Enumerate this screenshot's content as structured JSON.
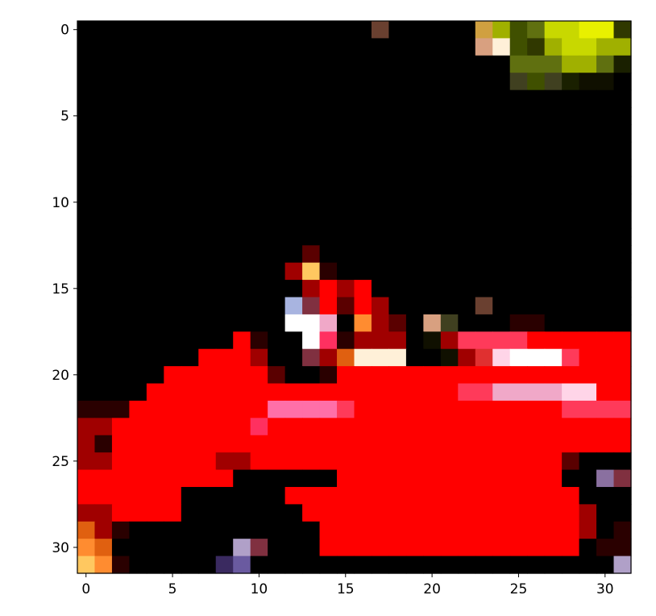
{
  "chart_data": {
    "type": "heatmap",
    "title": "",
    "xlabel": "",
    "ylabel": "",
    "xlim": [
      -0.5,
      31.5
    ],
    "ylim": [
      31.5,
      -0.5
    ],
    "grid": false,
    "x_ticks": [
      "0",
      "5",
      "10",
      "15",
      "20",
      "25",
      "30"
    ],
    "y_ticks": [
      "0",
      "5",
      "10",
      "15",
      "20",
      "25",
      "30"
    ],
    "palette": {
      "K": "#000000",
      "R": "#ff0000",
      "r": "#e81010",
      "M": "#a00000",
      "D": "#5a0000",
      "d": "#2a0000",
      "P": "#ff6fa8",
      "p": "#ff3060",
      "S": "#ff3a5a",
      "W": "#ffffff",
      "w": "#fff0d8",
      "c": "#ffd5e8",
      "q": "#f0a8c8",
      "O": "#ff8c30",
      "o": "#e06010",
      "Y": "#ffc860",
      "y": "#d0a040",
      "B": "#a8b4e0",
      "L": "#b0a0c8",
      "l": "#8a70a0",
      "V": "#3a2a60",
      "v": "#6a5aa0",
      "n": "#6a4030",
      "t": "#d8a080",
      "u": "#805020",
      "G": "#a0b000",
      "g": "#c8d800",
      "h": "#e8f000",
      "e": "#607010",
      "f": "#405000",
      "j": "#303800",
      "k": "#1a2000",
      "z": "#101000",
      "x": "#404020",
      "m": "#803040",
      "s": "#e03030"
    },
    "pixel_rows": [
      "KKKKKKKKKKKKKKKKKnKKKKKyGfegghhj",
      "KKKKKKKKKKKKKKKKKKKKKKKtwfjGggGG",
      "KKKKKKKKKKKKKKKKKKKKKKKKKeeeGGek",
      "KKKKKKKKKKKKKKKKKKKKKKKKKxfxkzzK",
      "KKKKKKKKKKKKKKKKKKKKKKKKKKKKKKKK",
      "KKKKKKKKKKKKKKKKKKKKKKKKKKKKKKKK",
      "KKKKKKKKKKKKKKKKKKKKKKKKKKKKKKKK",
      "KKKKKKKKKKKKKKKKKKKKKKKKKKKKKKKK",
      "KKKKKKKKKKKKKKKKKKKKKKKKKKKKKKKK",
      "KKKKKKKKKKKKKKKKKKKKKKKKKKKKKKKK",
      "KKKKKKKKKKKKKKKKKKKKKKKKKKKKKKKK",
      "KKKKKKKKKKKKKKKKKKKKKKKKKKKKKKKK",
      "KKKKKKKKKKKKKKKKKKKKKKKKKKKKKKKK",
      "KKKKKKKKKKKKKDKKKKKKKKKKKKKKKKKK",
      "KKKKKKKKKKKKMYdKKKKKKKKKKKKKKKKK",
      "KKKKKKKKKKKKKMRMRKKKKKKKKKKKKKKK",
      "KKKKKKKKKKKKBmRDRMKKKKKnKKKKKKKK",
      "KKKKKKKKKKKKWWqKOMDKtxKKKddKKKKK",
      "KKKKKKKKKRdKKWpdMMMKzMSSSSRRRRRR",
      "KKKKKKKRRRMKKmMowwwKKzMscWWWSRRR",
      "KKKKKRRRRRRDKKdRRRRRRRRRRRRRRRRR",
      "KKKKRRRRRRRRRRRRRRRRRRSSqqqqccRR",
      "dddRRRRRRRRPPPPSRRRRRRRRRRRRSSSS",
      "MMRRRRRRRRpRRRRRRRRRRRRRRRRRRRRR",
      "MdRRRRRRRRRRRRRRRRRRRRRRRRRRRRRR",
      "MMRRRRRRMMRRRRRRRRRRRRRRRRRRDKKK",
      "RRRRRRRRRKKKKKKRRRRRRRRRRRRRKKlm",
      "RRRRRRKKKKKKRRRRRRRRRRRRRRRRRKKK",
      "MMRRRRKKKKKKKRRRRRRRRRRRRRRRRMKK",
      "oMdKKKKKKKKKKKRRRRRRRRRRRRRRRMKd",
      "OoKKKKKKKLmKKKRRRRRRRRRRRRRRRKdd",
      "YOdKKKKKVvKKKKKKKKKKKKKKKKKKKKKL"
    ]
  }
}
